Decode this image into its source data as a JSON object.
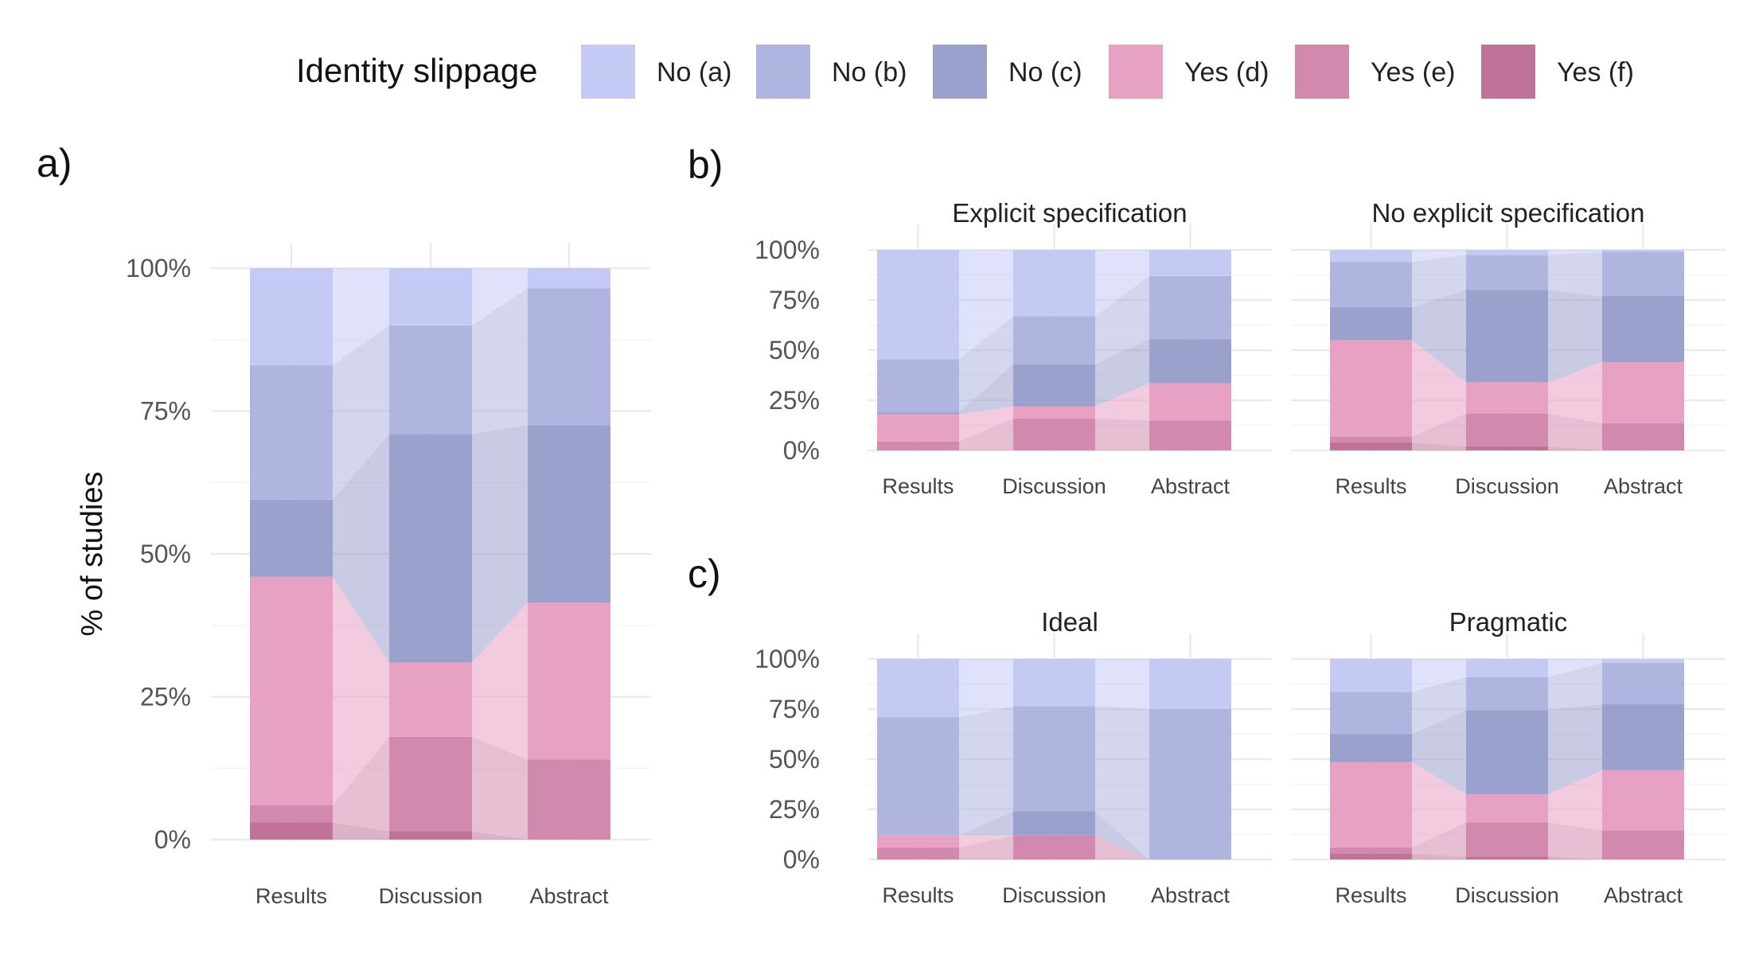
{
  "legend": {
    "title": "Identity slippage",
    "entries": [
      {
        "label": "No (a)",
        "color": "#c5caf5"
      },
      {
        "label": "No (b)",
        "color": "#b0b5e0"
      },
      {
        "label": "No (c)",
        "color": "#9aa1cc"
      },
      {
        "label": "Yes (d)",
        "color": "#e7a1c3"
      },
      {
        "label": "Yes (e)",
        "color": "#d18aae"
      },
      {
        "label": "Yes (f)",
        "color": "#bf7399"
      }
    ]
  },
  "chart_data": [
    {
      "type": "bar",
      "panel": "a)",
      "strip_title": "",
      "ylabel": "% of studies",
      "xlabel": "",
      "ylim": [
        0,
        100
      ],
      "yticks": [
        "0%",
        "25%",
        "50%",
        "75%",
        "100%"
      ],
      "categories": [
        "Results",
        "Discussion",
        "Abstract"
      ],
      "series": [
        {
          "name": "Yes (f)",
          "values": [
            3,
            1.5,
            0
          ]
        },
        {
          "name": "Yes (e)",
          "values": [
            3,
            16.5,
            14
          ]
        },
        {
          "name": "Yes (d)",
          "values": [
            40,
            13,
            27.5
          ]
        },
        {
          "name": "No (c)",
          "values": [
            13.5,
            40,
            31
          ]
        },
        {
          "name": "No (b)",
          "values": [
            23.5,
            19,
            24
          ]
        },
        {
          "name": "No (a)",
          "values": [
            17,
            10,
            3.5
          ]
        }
      ]
    },
    {
      "type": "bar",
      "panel": "b)",
      "strip_title": "Explicit specification",
      "ylim": [
        0,
        100
      ],
      "yticks": [
        "0%",
        "25%",
        "50%",
        "75%",
        "100%"
      ],
      "categories": [
        "Results",
        "Discussion",
        "Abstract"
      ],
      "series": [
        {
          "name": "Yes (f)",
          "values": [
            0,
            0,
            0
          ]
        },
        {
          "name": "Yes (e)",
          "values": [
            4.5,
            16,
            15
          ]
        },
        {
          "name": "Yes (d)",
          "values": [
            13.5,
            6,
            18.5
          ]
        },
        {
          "name": "No (c)",
          "values": [
            1,
            21,
            22
          ]
        },
        {
          "name": "No (b)",
          "values": [
            26.5,
            24,
            31.5
          ]
        },
        {
          "name": "No (a)",
          "values": [
            54.5,
            33,
            13
          ]
        }
      ]
    },
    {
      "type": "bar",
      "panel": "",
      "strip_title": "No explicit specification",
      "ylim": [
        0,
        100
      ],
      "yticks": [
        "0%",
        "25%",
        "50%",
        "75%",
        "100%"
      ],
      "categories": [
        "Results",
        "Discussion",
        "Abstract"
      ],
      "series": [
        {
          "name": "Yes (f)",
          "values": [
            4,
            2,
            0
          ]
        },
        {
          "name": "Yes (e)",
          "values": [
            3,
            16.5,
            13.5
          ]
        },
        {
          "name": "Yes (d)",
          "values": [
            48,
            15.5,
            30.5
          ]
        },
        {
          "name": "No (c)",
          "values": [
            16.5,
            46,
            33
          ]
        },
        {
          "name": "No (b)",
          "values": [
            22.5,
            17.5,
            22
          ]
        },
        {
          "name": "No (a)",
          "values": [
            6,
            2.5,
            1
          ]
        }
      ]
    },
    {
      "type": "bar",
      "panel": "c)",
      "strip_title": "Ideal",
      "ylim": [
        0,
        100
      ],
      "yticks": [
        "0%",
        "25%",
        "50%",
        "75%",
        "100%"
      ],
      "categories": [
        "Results",
        "Discussion",
        "Abstract"
      ],
      "series": [
        {
          "name": "Yes (f)",
          "values": [
            0,
            0,
            0
          ]
        },
        {
          "name": "Yes (e)",
          "values": [
            6,
            12,
            0
          ]
        },
        {
          "name": "Yes (d)",
          "values": [
            6,
            0,
            0
          ]
        },
        {
          "name": "No (c)",
          "values": [
            0,
            12,
            0
          ]
        },
        {
          "name": "No (b)",
          "values": [
            59,
            52.5,
            75
          ]
        },
        {
          "name": "No (a)",
          "values": [
            29,
            23.5,
            25
          ]
        }
      ]
    },
    {
      "type": "bar",
      "panel": "",
      "strip_title": "Pragmatic",
      "ylim": [
        0,
        100
      ],
      "yticks": [
        "0%",
        "25%",
        "50%",
        "75%",
        "100%"
      ],
      "categories": [
        "Results",
        "Discussion",
        "Abstract"
      ],
      "series": [
        {
          "name": "Yes (f)",
          "values": [
            3,
            1.5,
            0
          ]
        },
        {
          "name": "Yes (e)",
          "values": [
            3,
            17,
            14.5
          ]
        },
        {
          "name": "Yes (d)",
          "values": [
            42.5,
            14,
            30
          ]
        },
        {
          "name": "No (c)",
          "values": [
            14,
            42,
            33
          ]
        },
        {
          "name": "No (b)",
          "values": [
            21,
            16.5,
            20.5
          ]
        },
        {
          "name": "No (a)",
          "values": [
            16.5,
            9,
            2
          ]
        }
      ]
    }
  ]
}
